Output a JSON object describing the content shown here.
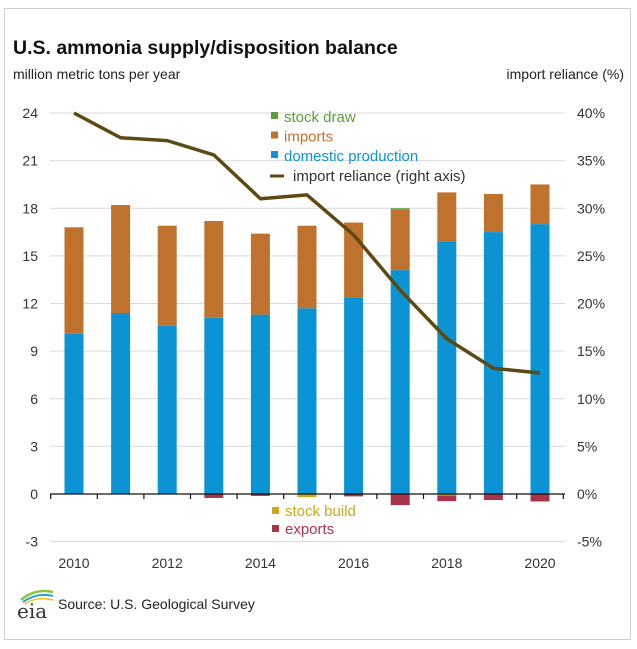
{
  "header": {
    "title": "U.S. ammonia supply/disposition balance",
    "left_axis_label": "million metric tons per year",
    "right_axis_label": "import reliance (%)"
  },
  "footer": {
    "logo": "eia",
    "source": "Source: U.S. Geological Survey"
  },
  "colors": {
    "stock_draw": "#5a9e3a",
    "imports": "#bf722e",
    "domestic_production": "#0b93d3",
    "import_reliance": "#5c4a12",
    "stock_build": "#c9a820",
    "exports": "#a8344a",
    "grid": "#d9d9d9"
  },
  "chart_data": {
    "type": "bar",
    "title": "U.S. ammonia supply/disposition balance",
    "xlabel": "",
    "ylabel": "million metric tons per year",
    "y2label": "import reliance (%)",
    "ylim": [
      -3,
      24
    ],
    "y2lim": [
      -5,
      40
    ],
    "yticks": [
      -3,
      0,
      3,
      6,
      9,
      12,
      15,
      18,
      21,
      24
    ],
    "y2ticks": [
      "-5%",
      "0%",
      "5%",
      "10%",
      "15%",
      "20%",
      "25%",
      "30%",
      "35%",
      "40%"
    ],
    "xtick_labels": [
      "2010",
      "2012",
      "2014",
      "2016",
      "2018",
      "2020"
    ],
    "grid": true,
    "categories": [
      "2010",
      "2011",
      "2012",
      "2013",
      "2014",
      "2015",
      "2016",
      "2017",
      "2018",
      "2019",
      "2020"
    ],
    "series": [
      {
        "name": "domestic production",
        "type": "stacked-bar",
        "values": [
          10.1,
          11.4,
          10.6,
          11.1,
          11.3,
          11.7,
          12.4,
          14.1,
          15.9,
          16.5,
          17.0
        ]
      },
      {
        "name": "imports",
        "type": "stacked-bar",
        "values": [
          6.7,
          6.8,
          6.3,
          6.1,
          5.1,
          5.2,
          4.7,
          3.8,
          3.1,
          2.4,
          2.5
        ]
      },
      {
        "name": "stock draw",
        "type": "stacked-bar",
        "values": [
          0,
          0,
          0,
          0,
          0,
          0,
          0,
          0.1,
          0,
          0,
          0
        ]
      },
      {
        "name": "stock build",
        "type": "stacked-bar",
        "values": [
          0,
          0,
          0,
          0,
          0,
          -0.2,
          0,
          0,
          -0.1,
          0,
          0
        ]
      },
      {
        "name": "exports",
        "type": "stacked-bar",
        "values": [
          0,
          0,
          0,
          -0.25,
          -0.12,
          0,
          -0.15,
          -0.7,
          -0.35,
          -0.38,
          -0.47
        ]
      },
      {
        "name": "import reliance (right axis)",
        "type": "line",
        "axis": "right",
        "values": [
          40,
          37.4,
          37.1,
          35.6,
          31.0,
          31.4,
          27.2,
          21.4,
          16.3,
          13.2,
          12.7
        ]
      }
    ],
    "legend": {
      "top": [
        "stock draw",
        "imports",
        "domestic production",
        "import reliance (right axis)"
      ],
      "bottom": [
        "stock build",
        "exports"
      ]
    }
  }
}
